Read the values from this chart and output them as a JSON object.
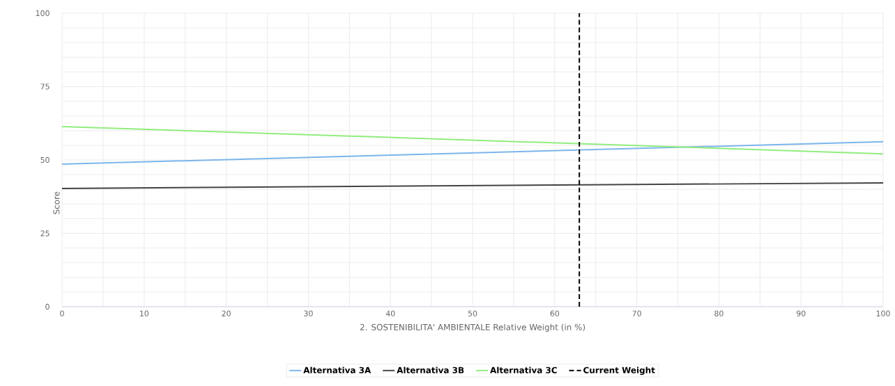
{
  "chart_data": {
    "type": "line",
    "xlabel": "2. SOSTENIBILITA' AMBIENTALE Relative Weight (in %)",
    "ylabel": "Score",
    "x": [
      0,
      100
    ],
    "series": [
      {
        "name": "Alternativa 3A",
        "color": "#7cb5ec",
        "values": [
          48.6,
          56.2
        ]
      },
      {
        "name": "Alternativa 3B",
        "color": "#434348",
        "values": [
          40.3,
          42.2
        ]
      },
      {
        "name": "Alternativa 3C",
        "color": "#90ed7d",
        "values": [
          61.4,
          52.1
        ]
      },
      {
        "name": "Current Weight",
        "color": "#000000",
        "x": [
          63,
          63
        ],
        "values": [
          0,
          100
        ],
        "line_style": "dashed"
      }
    ],
    "xlim": [
      0,
      100
    ],
    "ylim": [
      0,
      100
    ],
    "xticks": [
      0,
      {
        "value": 5,
        "label": null
      },
      10,
      {
        "value": 15,
        "label": null
      },
      20,
      {
        "value": 25,
        "label": null
      },
      30,
      {
        "value": 35,
        "label": null
      },
      40,
      {
        "value": 45,
        "label": null
      },
      50,
      {
        "value": 55,
        "label": null
      },
      60,
      {
        "value": 65,
        "label": null
      },
      70,
      {
        "value": 75,
        "label": null
      },
      80,
      {
        "value": 85,
        "label": null
      },
      90,
      {
        "value": 95,
        "label": null
      },
      100
    ],
    "yticks": [
      0,
      {
        "value": 5,
        "label": null
      },
      {
        "value": 10,
        "label": null
      },
      {
        "value": 15,
        "label": null
      },
      {
        "value": 20,
        "label": null
      },
      25,
      {
        "value": 30,
        "label": null
      },
      {
        "value": 35,
        "label": null
      },
      {
        "value": 40,
        "label": null
      },
      {
        "value": 45,
        "label": null
      },
      50,
      {
        "value": 55,
        "label": null
      },
      {
        "value": 60,
        "label": null
      },
      {
        "value": 65,
        "label": null
      },
      {
        "value": 70,
        "label": null
      },
      75,
      {
        "value": 80,
        "label": null
      },
      {
        "value": 85,
        "label": null
      },
      {
        "value": 90,
        "label": null
      },
      {
        "value": 95,
        "label": null
      },
      100
    ],
    "grid": true,
    "legend": "bottom",
    "marker": "none",
    "line_style": "solid"
  }
}
